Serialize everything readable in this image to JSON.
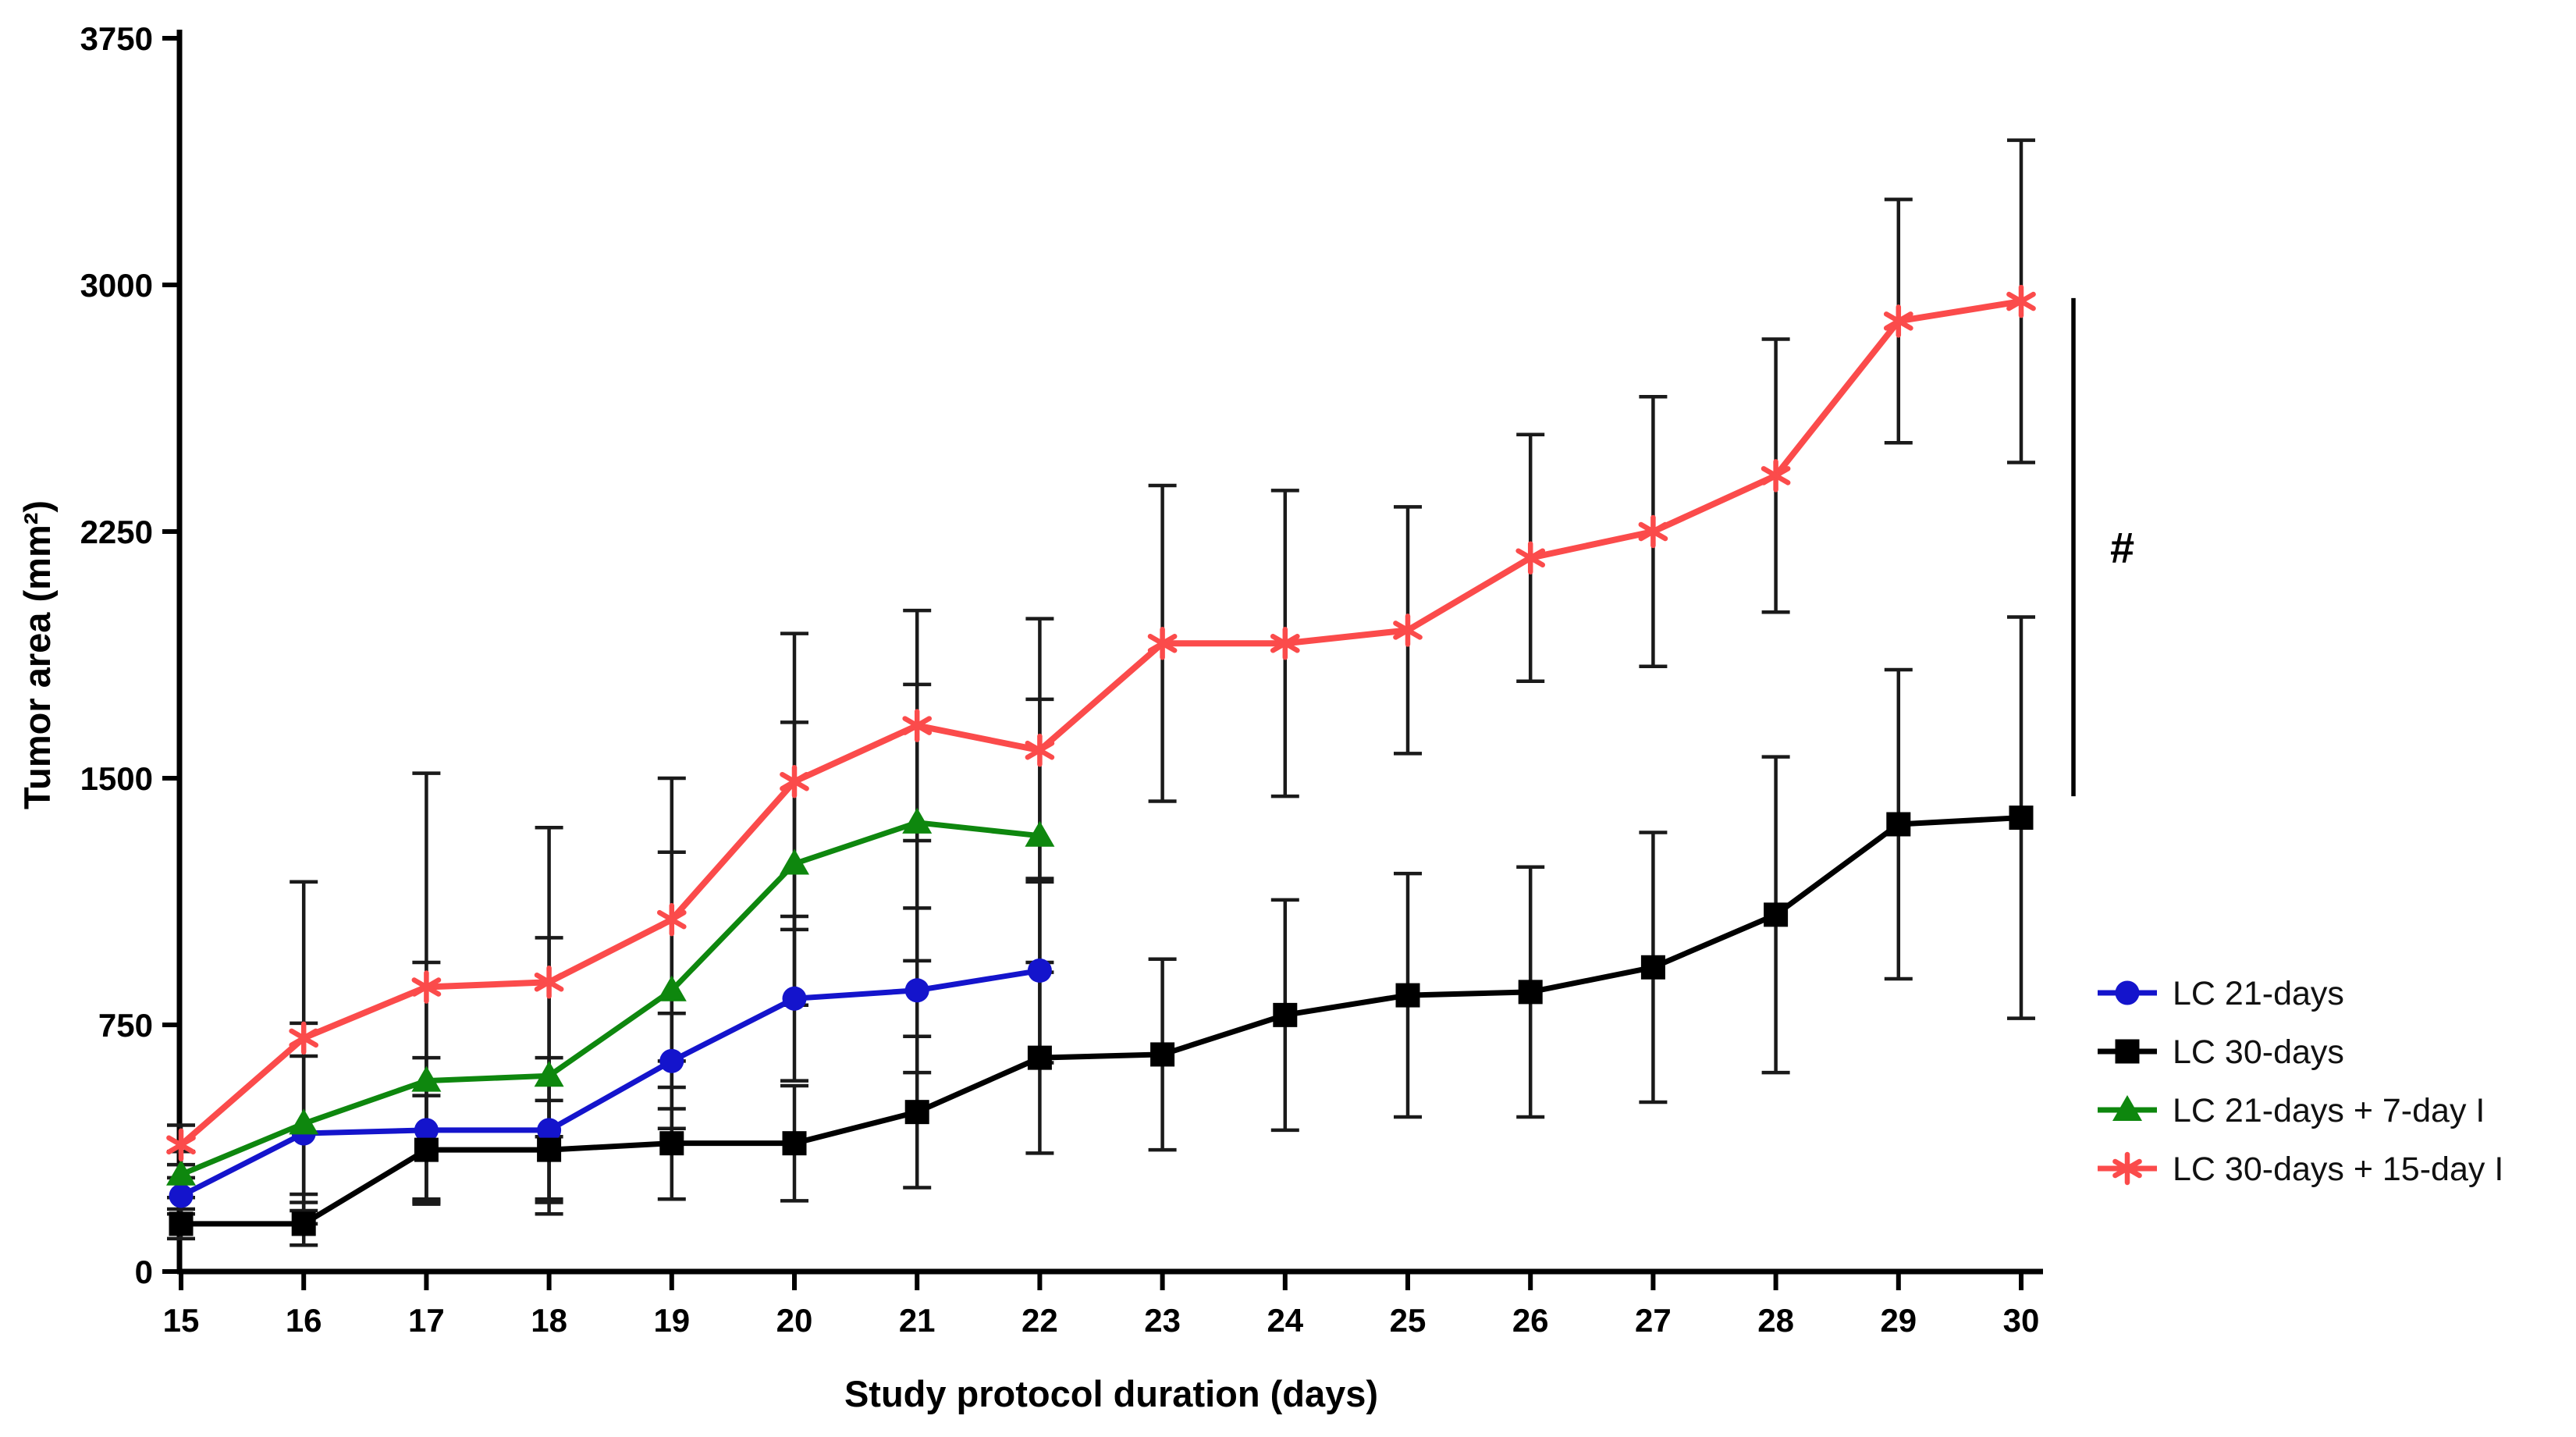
{
  "figure": {
    "background": "#ffffff",
    "axis_color": "#000000",
    "errorbar_color": "#1a1a1a",
    "annotation_symbol": "#"
  },
  "chart_data": {
    "type": "line",
    "title": "",
    "xlabel": "Study protocol duration (days)",
    "ylabel": "Tumor area (mm²)",
    "x": [
      15,
      16,
      17,
      18,
      19,
      20,
      21,
      22,
      23,
      24,
      25,
      26,
      27,
      28,
      29,
      30
    ],
    "xlim": [
      15,
      30
    ],
    "ylim": [
      0,
      3750
    ],
    "yticks": [
      0,
      750,
      1500,
      2250,
      3000,
      3750
    ],
    "grid": false,
    "legend_position": "right-middle",
    "error_bars": "sd, black, capped",
    "series": [
      {
        "name": "LC 21-days",
        "color": "#1414cc",
        "marker": "circle",
        "x": [
          15,
          16,
          17,
          18,
          19,
          20,
          21,
          22
        ],
        "values": [
          230,
          420,
          430,
          430,
          640,
          830,
          855,
          915
        ],
        "sd": [
          55,
          235,
          220,
          220,
          145,
          250,
          250,
          280
        ]
      },
      {
        "name": "LC 30-days",
        "color": "#000000",
        "marker": "square",
        "x": [
          15,
          16,
          17,
          18,
          19,
          20,
          21,
          22,
          23,
          24,
          25,
          26,
          27,
          28,
          29,
          30
        ],
        "values": [
          145,
          145,
          370,
          370,
          390,
          390,
          485,
          650,
          660,
          780,
          840,
          850,
          925,
          1085,
          1360,
          1380
        ],
        "sd": [
          45,
          65,
          165,
          150,
          170,
          175,
          230,
          290,
          290,
          350,
          370,
          380,
          410,
          480,
          470,
          610
        ]
      },
      {
        "name": "LC 21-days + 7-day I",
        "color": "#0e870e",
        "marker": "triangle",
        "x": [
          15,
          16,
          17,
          18,
          19,
          20,
          21,
          22
        ],
        "values": [
          295,
          450,
          580,
          595,
          855,
          1240,
          1365,
          1325
        ],
        "sd": [
          70,
          305,
          360,
          420,
          420,
          430,
          420,
          415
        ]
      },
      {
        "name": "LC 30-days + 15-day I",
        "color": "#fb4b4b",
        "marker": "asterisk",
        "x": [
          15,
          16,
          17,
          18,
          19,
          20,
          21,
          22,
          23,
          24,
          25,
          26,
          27,
          28,
          29,
          30
        ],
        "values": [
          385,
          710,
          865,
          880,
          1070,
          1490,
          1660,
          1585,
          1910,
          1910,
          1950,
          2170,
          2250,
          2420,
          2890,
          2950
        ],
        "sd": [
          60,
          475,
          650,
          470,
          430,
          450,
          350,
          400,
          480,
          465,
          375,
          375,
          410,
          415,
          370,
          490
        ]
      }
    ],
    "annotation": {
      "symbol": "#",
      "y_value": 2200,
      "bracket_from_value": 1445,
      "bracket_to_value": 2960,
      "compares": [
        "LC 30-days + 15-day I",
        "LC 30-days"
      ]
    }
  }
}
